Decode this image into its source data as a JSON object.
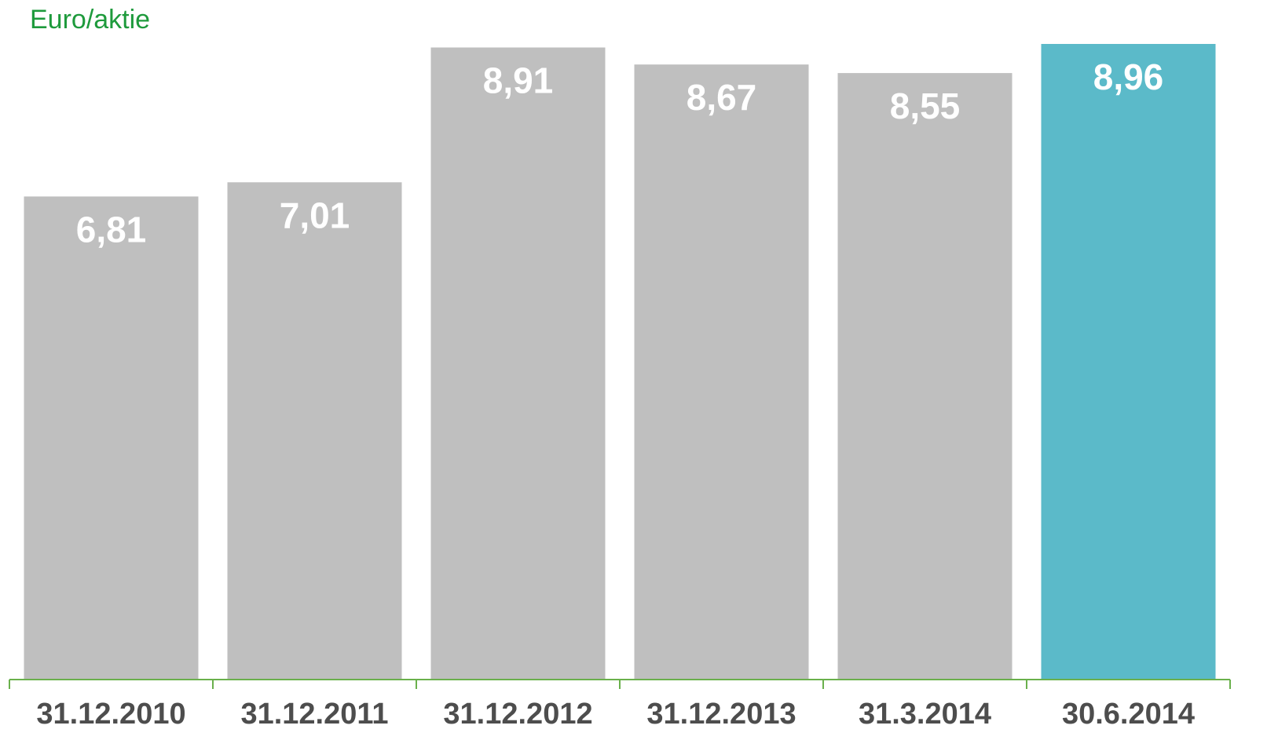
{
  "chart_data": {
    "type": "bar",
    "unit_label": "Euro/aktie",
    "categories": [
      "31.12.2010",
      "31.12.2011",
      "31.12.2012",
      "31.12.2013",
      "31.3.2014",
      "30.6.2014"
    ],
    "values": [
      6.81,
      7.01,
      8.91,
      8.67,
      8.55,
      8.96
    ],
    "value_labels": [
      "6,81",
      "7,01",
      "8,91",
      "8,67",
      "8,55",
      "8,96"
    ],
    "ylim": [
      0,
      8.96
    ],
    "grid": false,
    "legend": "none",
    "highlight_index": 5
  },
  "colors": {
    "bar_default": "#bfbfbf",
    "bar_highlight": "#5bbac9",
    "axis": "#6ab04c",
    "unit_label": "#1e9a3c",
    "tick_label": "#4d4d4d",
    "value_label": "#ffffff"
  }
}
